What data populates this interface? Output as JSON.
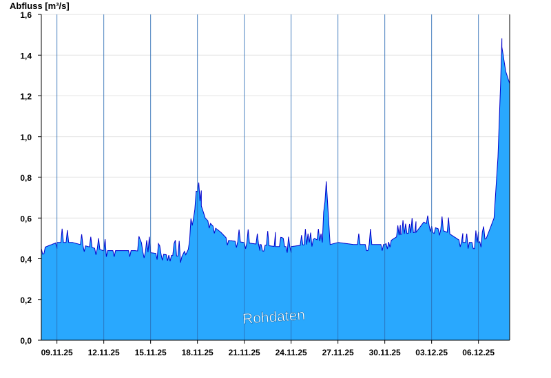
{
  "chart_data": {
    "type": "area",
    "ylabel": "Abfluss [m³/s]",
    "watermark": "Rohdaten",
    "ylim": [
      0,
      1.6
    ],
    "yticks": [
      "0,0",
      "0,2",
      "0,4",
      "0,6",
      "0,8",
      "1,0",
      "1,2",
      "1,4",
      "1,6"
    ],
    "xlim": [
      "2025-11-08",
      "2025-12-08"
    ],
    "xticks": [
      "09.11.25",
      "12.11.25",
      "15.11.25",
      "18.11.25",
      "21.11.25",
      "24.11.25",
      "27.11.25",
      "30.11.25",
      "03.12.25",
      "06.12.25"
    ],
    "grid": "horizontal",
    "fill_color": "#29a8fe",
    "line_color": "#0000cc",
    "series": [
      {
        "x": [
          "2025-11-08",
          "2025-11-09",
          "2025-11-10",
          "2025-11-11",
          "2025-11-12",
          "2025-11-13",
          "2025-11-14",
          "2025-11-15",
          "2025-11-16",
          "2025-11-17",
          "2025-11-17 12:00",
          "2025-11-17 18:00",
          "2025-11-18",
          "2025-11-18 06:00",
          "2025-11-18 12:00",
          "2025-11-19",
          "2025-11-19 12:00",
          "2025-11-20",
          "2025-11-21",
          "2025-11-22",
          "2025-11-23",
          "2025-11-24",
          "2025-11-25",
          "2025-11-25 12:00",
          "2025-11-26",
          "2025-11-26 06:00",
          "2025-11-26 12:00",
          "2025-11-27",
          "2025-11-28",
          "2025-11-29",
          "2025-11-30",
          "2025-12-01",
          "2025-12-02",
          "2025-12-02 12:00",
          "2025-12-03",
          "2025-12-04",
          "2025-12-05",
          "2025-12-06",
          "2025-12-06 12:00",
          "2025-12-07",
          "2025-12-07 06:00",
          "2025-12-07 12:00",
          "2025-12-07 18:00",
          "2025-12-08"
        ],
        "y": [
          0.45,
          0.48,
          0.48,
          0.46,
          0.44,
          0.44,
          0.44,
          0.43,
          0.42,
          0.41,
          0.49,
          0.6,
          0.73,
          0.66,
          0.6,
          0.56,
          0.53,
          0.49,
          0.48,
          0.47,
          0.46,
          0.46,
          0.47,
          0.5,
          0.48,
          0.78,
          0.47,
          0.48,
          0.47,
          0.47,
          0.47,
          0.52,
          0.53,
          0.58,
          0.56,
          0.53,
          0.48,
          0.48,
          0.5,
          0.6,
          0.9,
          1.44,
          1.32,
          1.26
        ]
      }
    ]
  }
}
